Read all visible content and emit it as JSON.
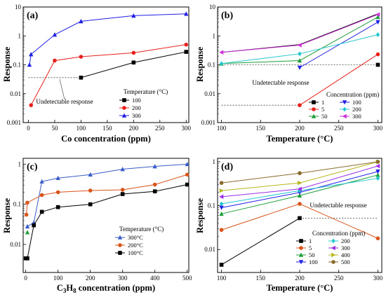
{
  "chart_data": [
    {
      "panel": "(a)",
      "type": "line",
      "xlabel": "Co concentration (ppm)",
      "ylabel": "Response",
      "xlim": [
        -10,
        305
      ],
      "ylim": [
        0.001,
        10
      ],
      "yscale": "log",
      "xticks": [
        0,
        50,
        100,
        150,
        200,
        250,
        300
      ],
      "yticks": [
        0.001,
        0.01,
        0.1,
        1,
        10
      ],
      "ytick_labels": [
        "0.001",
        "0.01",
        "0.1",
        "1",
        "10"
      ],
      "legend_title": "Temperature (°C)",
      "legend_position": "center-right",
      "series": [
        {
          "name": "100",
          "color": "#000000",
          "marker": "square",
          "x": [
            100,
            200,
            300
          ],
          "y": [
            0.036,
            0.12,
            0.28
          ]
        },
        {
          "name": "200",
          "color": "#e8201c",
          "marker": "circle",
          "x": [
            5,
            50,
            100,
            200,
            300
          ],
          "y": [
            0.004,
            0.14,
            0.19,
            0.26,
            0.5
          ]
        },
        {
          "name": "300",
          "color": "#1f1fe6",
          "marker": "triangle",
          "x": [
            2,
            5,
            50,
            100,
            200,
            300
          ],
          "y": [
            0.1,
            0.23,
            1.1,
            3.2,
            5.0,
            5.8
          ]
        }
      ],
      "threshold": {
        "y": 0.036,
        "x_range": [
          0,
          100
        ],
        "label": "Undetectable response"
      }
    },
    {
      "panel": "(b)",
      "type": "line",
      "xlabel": "Temperature (°C)",
      "ylabel": "Response",
      "xlim": [
        95,
        305
      ],
      "ylim": [
        0.001,
        10
      ],
      "yscale": "log",
      "xticks": [
        100,
        150,
        200,
        250,
        300
      ],
      "yticks": [
        0.001,
        0.01,
        0.1,
        1,
        10
      ],
      "ytick_labels": [
        "0.001",
        "0.01",
        "0.1",
        "1",
        "10"
      ],
      "legend_title": "Concentration (ppm)",
      "legend_position": "bottom-right",
      "series": [
        {
          "name": "1",
          "color": "#000000",
          "marker": "square",
          "x": [
            300
          ],
          "y": [
            0.1
          ]
        },
        {
          "name": "5",
          "color": "#e8201c",
          "marker": "circle",
          "x": [
            200,
            300
          ],
          "y": [
            0.004,
            0.23
          ]
        },
        {
          "name": "50",
          "color": "#1e9e3a",
          "marker": "triangle",
          "x": [
            100,
            200,
            300
          ],
          "y": [
            0.11,
            0.14,
            4.5
          ]
        },
        {
          "name": "100",
          "color": "#1f1fe6",
          "marker": "triangle-down",
          "x": [
            200,
            300
          ],
          "y": [
            0.08,
            3.0
          ]
        },
        {
          "name": "200",
          "color": "#24c6cf",
          "marker": "diamond",
          "x": [
            100,
            200,
            300
          ],
          "y": [
            0.11,
            0.24,
            1.1
          ]
        },
        {
          "name": "300",
          "color": "#cc2ed8",
          "marker": "triangle-left",
          "x": [
            100,
            200,
            300
          ],
          "y": [
            0.27,
            0.48,
            5.5
          ]
        }
      ],
      "extra_lines": [
        {
          "color": "#000000",
          "marker": "none",
          "x": [
            100,
            200,
            300
          ],
          "y": [
            0.27,
            0.5,
            5.8
          ]
        }
      ],
      "threshold": [
        {
          "y": 0.1,
          "x_range": [
            100,
            300
          ],
          "label": "Undetectable response"
        },
        {
          "y": 0.004,
          "x_range": [
            100,
            200
          ]
        }
      ]
    },
    {
      "panel": "(c)",
      "type": "line",
      "xlabel_prefix": "C",
      "xlabel_sub1": "3",
      "xlabel_mid": "H",
      "xlabel_sub2": "8",
      "xlabel_suffix": " concentration (ppm)",
      "ylabel": "Response",
      "xlim": [
        -8,
        505
      ],
      "ylim": [
        0.002,
        1.4
      ],
      "yscale": "log",
      "xticks": [
        0,
        100,
        200,
        300,
        400,
        500
      ],
      "yticks": [
        0.01,
        0.1,
        1
      ],
      "ytick_labels": [
        "0.01",
        "0.1",
        "1"
      ],
      "legend_title": "Temperature (°C)",
      "legend_position": "center-right",
      "series": [
        {
          "name": "300°C",
          "color": "#3a5cc8",
          "marker": "triangle",
          "x": [
            5,
            25,
            50,
            100,
            200,
            300,
            400,
            500
          ],
          "y": [
            0.028,
            0.035,
            0.37,
            0.45,
            0.55,
            0.75,
            0.88,
            1.0
          ]
        },
        {
          "name": "200°C",
          "color": "#d9541a",
          "marker": "circle",
          "x": [
            2,
            5,
            50,
            100,
            200,
            300,
            400,
            500
          ],
          "y": [
            0.055,
            0.11,
            0.17,
            0.2,
            0.22,
            0.23,
            0.31,
            0.55
          ]
        },
        {
          "name": "100°C",
          "color": "#000000",
          "marker": "square",
          "x": [
            0,
            5,
            25,
            50,
            100,
            200,
            300,
            400,
            500
          ],
          "y": [
            0.0045,
            0.0045,
            0.03,
            0.065,
            0.085,
            0.1,
            0.18,
            0.21,
            0.31
          ]
        }
      ],
      "extra_points": [
        {
          "color": "#1e9e3a",
          "marker": "triangle",
          "x": 5,
          "y": 0.02
        }
      ]
    },
    {
      "panel": "(d)",
      "type": "line",
      "xlabel": "Temperature (°C)",
      "ylabel": "Response",
      "xlim": [
        95,
        305
      ],
      "ylim": [
        0.003,
        1.2
      ],
      "yscale": "log",
      "xticks": [
        100,
        150,
        200,
        250,
        300
      ],
      "yticks": [
        0.01,
        0.1,
        1
      ],
      "ytick_labels": [
        "0.01",
        "0.1",
        "1"
      ],
      "legend_title": "Concentration (ppm)",
      "legend_position": "bottom-right",
      "series": [
        {
          "name": "1",
          "color": "#000000",
          "marker": "square",
          "x": [
            100,
            200
          ],
          "y": [
            0.0045,
            0.052
          ]
        },
        {
          "name": "5",
          "color": "#d9541a",
          "marker": "circle",
          "x": [
            100,
            200,
            300
          ],
          "y": [
            0.028,
            0.11,
            0.018
          ]
        },
        {
          "name": "50",
          "color": "#1e9e3a",
          "marker": "triangle",
          "x": [
            100,
            200,
            300
          ],
          "y": [
            0.065,
            0.17,
            0.5
          ]
        },
        {
          "name": "100",
          "color": "#1f1fe6",
          "marker": "triangle-down",
          "x": [
            100,
            200,
            300
          ],
          "y": [
            0.09,
            0.2,
            0.6
          ]
        },
        {
          "name": "200",
          "color": "#24c6cf",
          "marker": "diamond",
          "x": [
            100,
            200,
            300
          ],
          "y": [
            0.11,
            0.22,
            0.42
          ]
        },
        {
          "name": "300",
          "color": "#9b2ee6",
          "marker": "triangle-left",
          "x": [
            100,
            200,
            300
          ],
          "y": [
            0.16,
            0.24,
            0.8
          ]
        },
        {
          "name": "400",
          "color": "#b7b71e",
          "marker": "triangle-right",
          "x": [
            100,
            200,
            300
          ],
          "y": [
            0.22,
            0.33,
            1.0
          ]
        },
        {
          "name": "500",
          "color": "#8a6a2a",
          "marker": "hexagon",
          "x": [
            100,
            200,
            300
          ],
          "y": [
            0.33,
            0.55,
            1.0
          ]
        }
      ],
      "threshold": {
        "y": 0.052,
        "x_range": [
          200,
          300
        ],
        "label": "Undetectable response"
      }
    }
  ]
}
